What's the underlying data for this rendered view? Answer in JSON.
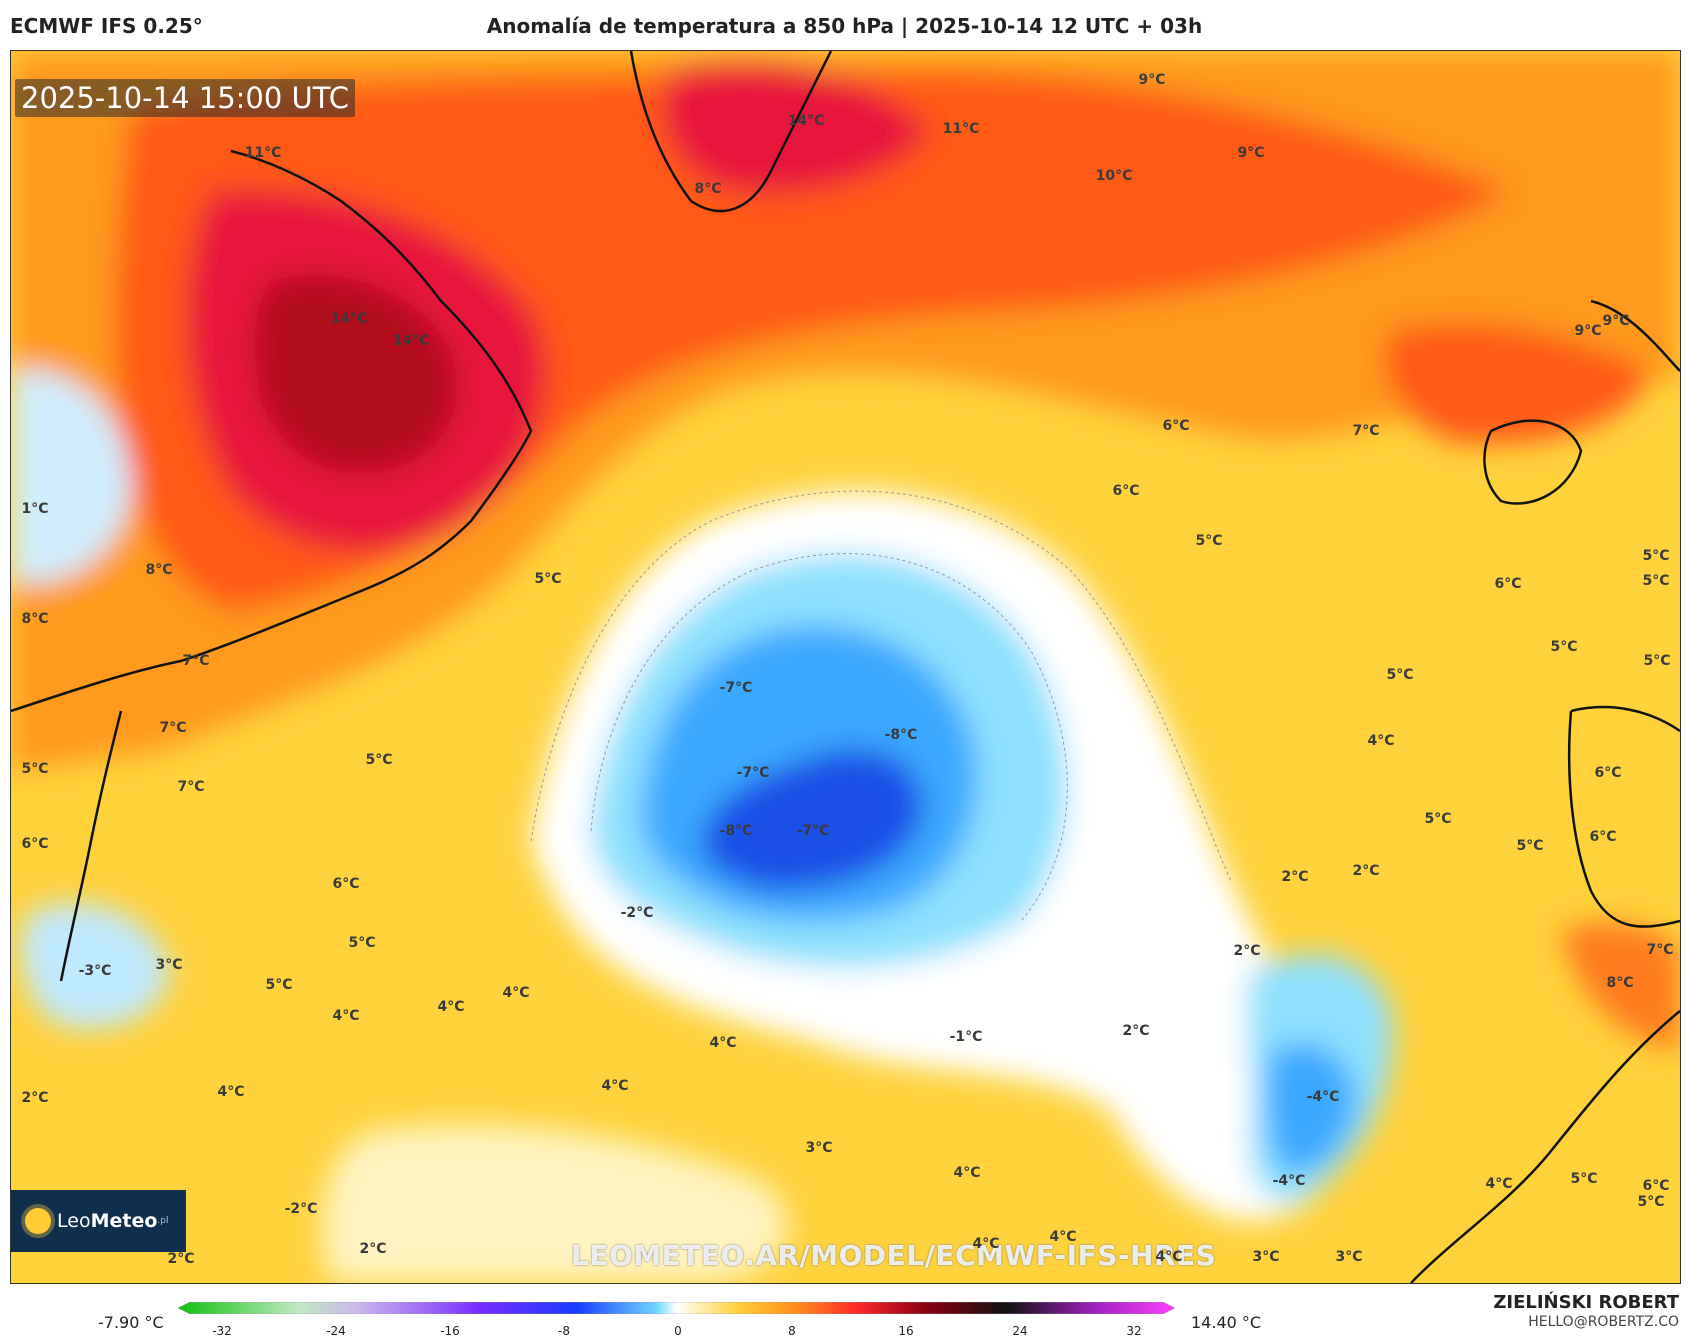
{
  "header": {
    "model": "ECMWF IFS 0.25°",
    "title": "Anomalía de temperatura a 850 hPa | 2025-10-14 12 UTC + 03h"
  },
  "map": {
    "timestamp": "2025-10-14 15:00 UTC",
    "logo_text_light": "Leo",
    "logo_text_bold": "Meteo",
    "logo_suffix": ".pl",
    "watermark": "LEOMETEO.AR/MODEL/ECMWF-IFS-HRES",
    "labels": [
      {
        "text": "11°C"
      },
      {
        "text": "14°C"
      },
      {
        "text": "14°C"
      },
      {
        "text": "14°C"
      },
      {
        "text": "8°C"
      },
      {
        "text": "11°C"
      },
      {
        "text": "9°C"
      },
      {
        "text": "10°C"
      },
      {
        "text": "9°C"
      },
      {
        "text": "9°C"
      },
      {
        "text": "9°C"
      },
      {
        "text": "6°C"
      },
      {
        "text": "7°C"
      },
      {
        "text": "6°C"
      },
      {
        "text": "5°C"
      },
      {
        "text": "5°C"
      },
      {
        "text": "6°C"
      },
      {
        "text": "5°C"
      },
      {
        "text": "5°C"
      },
      {
        "text": "5°C"
      },
      {
        "text": "4°C"
      },
      {
        "text": "6°C"
      },
      {
        "text": "5°C"
      },
      {
        "text": "6°C"
      },
      {
        "text": "5°C"
      },
      {
        "text": "7°C"
      },
      {
        "text": "8°C"
      },
      {
        "text": "2°C"
      },
      {
        "text": "2°C"
      },
      {
        "text": "2°C"
      },
      {
        "text": "2°C"
      },
      {
        "text": "-4°C"
      },
      {
        "text": "-4°C"
      },
      {
        "text": "4°C"
      },
      {
        "text": "5°C"
      },
      {
        "text": "5°C"
      },
      {
        "text": "3°C"
      },
      {
        "text": "3°C"
      },
      {
        "text": "4°C"
      },
      {
        "text": "4°C"
      },
      {
        "text": "4°C"
      },
      {
        "text": "3°C"
      },
      {
        "text": "4°C"
      },
      {
        "text": "4°C"
      },
      {
        "text": "-1°C"
      },
      {
        "text": "-7°C"
      },
      {
        "text": "-8°C"
      },
      {
        "text": "-7°C"
      },
      {
        "text": "-8°C"
      },
      {
        "text": "-7°C"
      },
      {
        "text": "-2°C"
      },
      {
        "text": "5°C"
      },
      {
        "text": "8°C"
      },
      {
        "text": "8°C"
      },
      {
        "text": "7°C"
      },
      {
        "text": "7°C"
      },
      {
        "text": "7°C"
      },
      {
        "text": "5°C"
      },
      {
        "text": "5°C"
      },
      {
        "text": "6°C"
      },
      {
        "text": "6°C"
      },
      {
        "text": "5°C"
      },
      {
        "text": "3°C"
      },
      {
        "text": "-3°C"
      },
      {
        "text": "5°C"
      },
      {
        "text": "4°C"
      },
      {
        "text": "4°C"
      },
      {
        "text": "4°C"
      },
      {
        "text": "4°C"
      },
      {
        "text": "4°C"
      },
      {
        "text": "2°C"
      },
      {
        "text": "-2°C"
      },
      {
        "text": "2°C"
      },
      {
        "text": "2°C"
      },
      {
        "text": "1°C"
      },
      {
        "text": "5°C"
      },
      {
        "text": "6°C"
      }
    ]
  },
  "colorbar": {
    "min_label": "-7.90 °C",
    "max_label": "14.40 °C",
    "ticks": [
      "-32",
      "-24",
      "-16",
      "-8",
      "0",
      "8",
      "16",
      "24",
      "32"
    ]
  },
  "footer": {
    "author": "ZIELIŃSKI ROBERT",
    "email": "HELLO@ROBERTZ.CO"
  }
}
